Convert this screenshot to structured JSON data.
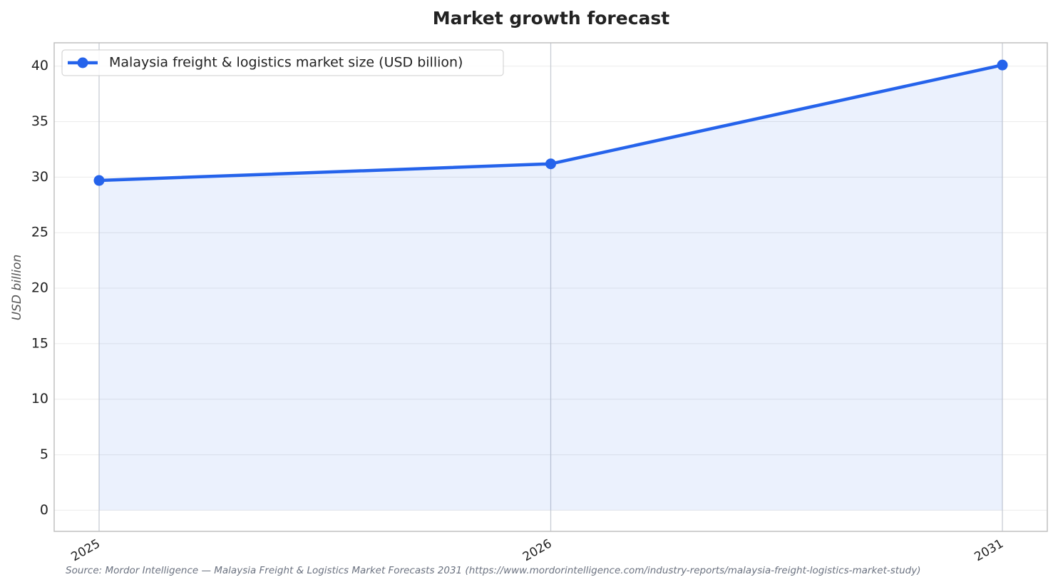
{
  "chart_data": {
    "type": "line",
    "title": "Market growth forecast",
    "y_label": "USD billion",
    "source": "Source: Mordor Intelligence — Malaysia Freight & Logistics Market Forecasts 2031 (https://www.mordorintelligence.com/industry-reports/malaysia-freight-logistics-market-study)",
    "categories": [
      "2025",
      "2026",
      "2031"
    ],
    "series": [
      {
        "name": "Malaysia freight & logistics market size (USD billion)",
        "color": "#2563eb",
        "values": [
          29.7,
          31.2,
          40.1
        ]
      }
    ],
    "ylim": [
      -1.9,
      42.1
    ],
    "yticks": [
      0,
      5,
      10,
      15,
      20,
      25,
      30,
      35,
      40
    ],
    "grid": true,
    "area_fill": true,
    "legend": "upper left"
  }
}
